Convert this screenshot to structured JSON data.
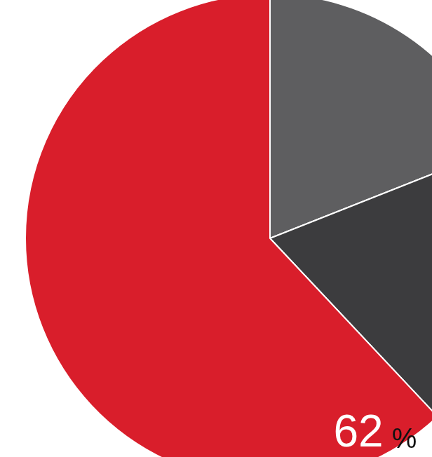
{
  "chart_data": {
    "type": "pie",
    "categories": [
      null,
      null,
      null
    ],
    "values": [
      19,
      19,
      62
    ],
    "value_labels": [
      null,
      null,
      "62 %"
    ],
    "colors": [
      "#5e5e60",
      "#3c3c3e",
      "#d91e2b"
    ],
    "data_labels": true
  }
}
